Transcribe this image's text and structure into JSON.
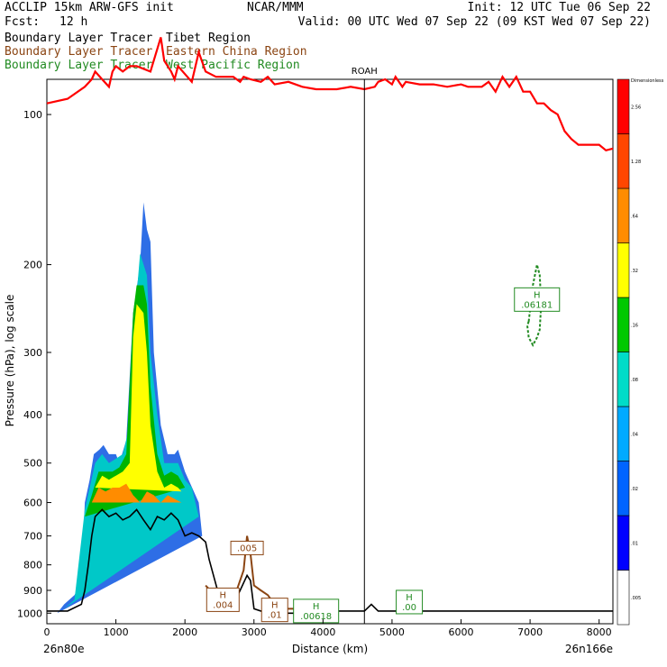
{
  "header": {
    "model": "ACCLIP 15km ARW-GFS init",
    "org": "NCAR/MMM",
    "init": "Init: 12 UTC Tue 06 Sep 22",
    "fcst_label": "Fcst:",
    "fcst_value": "12 h",
    "valid": "Valid: 00 UTC Wed 07 Sep 22 (09 KST Wed 07 Sep 22)"
  },
  "tracer_legend": [
    {
      "name": "Boundary Layer Tracer",
      "region": "Tibet Region",
      "color": "#000000"
    },
    {
      "name": "Boundary Layer Tracer",
      "region": "Eastern China Region",
      "color": "#8B4513"
    },
    {
      "name": "Boundary Layer Tracer",
      "region": "West Pacific Region",
      "color": "#228B22"
    }
  ],
  "chart_data": {
    "type": "area",
    "xlabel": "Distance (km)",
    "ylabel": "Pressure (hPa), log scale",
    "xlim": [
      0,
      8200
    ],
    "ylim": [
      1050,
      85
    ],
    "yscale": "log",
    "x_ticks": [
      "0",
      "1000",
      "2000",
      "3000",
      "4000",
      "5000",
      "6000",
      "7000",
      "8000"
    ],
    "y_ticks": [
      "100",
      "200",
      "300",
      "400",
      "500",
      "600",
      "700",
      "800",
      "900",
      "1000"
    ],
    "left_endpoint": "26n80e",
    "right_endpoint": "26n166e",
    "vertical_marker": {
      "label": "ROAH",
      "x": 4600
    },
    "tropopause_line": {
      "color": "#ff0000",
      "x": [
        0,
        300,
        550,
        650,
        700,
        800,
        900,
        950,
        1000,
        1100,
        1200,
        1300,
        1500,
        1650,
        1700,
        1800,
        1850,
        1900,
        2100,
        2200,
        2300,
        2450,
        2700,
        2800,
        2850,
        2950,
        3100,
        3200,
        3300,
        3500,
        3700,
        3900,
        4200,
        4400,
        4600,
        4750,
        4800,
        4900,
        5000,
        5050,
        5150,
        5200,
        5400,
        5600,
        5800,
        6000,
        6100,
        6300,
        6400,
        6500,
        6600,
        6700,
        6800,
        6900,
        7000,
        7100,
        7200,
        7300,
        7400,
        7500,
        7600,
        7700,
        8000,
        8100,
        8200
      ],
      "y": [
        95,
        93,
        88,
        85,
        82,
        85,
        88,
        82,
        80,
        82,
        80,
        80,
        82,
        70,
        78,
        82,
        85,
        80,
        86,
        75,
        82,
        84,
        84,
        86,
        84,
        85,
        86,
        84,
        87,
        86,
        88,
        89,
        89,
        88,
        89,
        88,
        86,
        85,
        87,
        84,
        88,
        86,
        87,
        87,
        88,
        87,
        88,
        88,
        86,
        90,
        84,
        88,
        84,
        90,
        90,
        95,
        95,
        98,
        100,
        108,
        112,
        115,
        115,
        118,
        117
      ]
    },
    "terrain_surface": {
      "color": "#000000",
      "x": [
        0,
        300,
        500,
        550,
        600,
        650,
        700,
        800,
        900,
        1000,
        1100,
        1200,
        1300,
        1400,
        1500,
        1550,
        1600,
        1700,
        1800,
        1900,
        2000,
        2100,
        2200,
        2300,
        2350,
        2500,
        2700,
        2800,
        2900,
        2950,
        3000,
        3100,
        3300,
        3500,
        3700,
        3900,
        4200,
        4400,
        4600,
        4700,
        4800,
        5000,
        6000,
        7000,
        8000,
        8200
      ],
      "y": [
        990,
        990,
        960,
        900,
        800,
        700,
        640,
        620,
        640,
        630,
        650,
        640,
        620,
        650,
        680,
        660,
        640,
        650,
        630,
        650,
        700,
        690,
        700,
        720,
        780,
        930,
        960,
        900,
        840,
        860,
        980,
        990,
        990,
        1000,
        1000,
        995,
        990,
        990,
        990,
        960,
        990,
        990,
        990,
        990,
        990,
        990
      ]
    },
    "brown_contour": {
      "color": "#8B4513",
      "x": [
        2300,
        2500,
        2650,
        2750,
        2800,
        2850,
        2900,
        2950,
        3000,
        3100,
        3200,
        3300,
        3400,
        3600,
        3700,
        3800,
        3900,
        4000,
        4100
      ],
      "y": [
        880,
        940,
        930,
        900,
        860,
        820,
        700,
        760,
        880,
        900,
        920,
        960,
        980,
        980,
        960,
        960,
        970,
        980,
        990
      ]
    },
    "green_contour": {
      "color": "#228B22",
      "x": [
        6980,
        7040,
        7100,
        7140,
        7160,
        7140,
        7100,
        7040,
        6980,
        6960,
        6980
      ],
      "y": [
        260,
        220,
        200,
        210,
        240,
        270,
        280,
        290,
        280,
        265,
        260
      ]
    },
    "shaded_fields": [
      {
        "fill": "#2e6ee6",
        "x": [
          150,
          250,
          400,
          500,
          550,
          620,
          680,
          760,
          820,
          900,
          1000,
          1050,
          1150,
          1250,
          1350,
          1400,
          1450,
          1500,
          1550,
          1650,
          1750,
          1850,
          1900,
          2000,
          2200,
          2250
        ],
        "y": [
          1000,
          960,
          920,
          870,
          600,
          540,
          480,
          470,
          460,
          480,
          480,
          500,
          450,
          250,
          200,
          150,
          170,
          180,
          300,
          420,
          480,
          480,
          470,
          520,
          600,
          700
        ]
      },
      {
        "fill": "#00c8c8",
        "x": [
          250,
          400,
          550,
          620,
          700,
          800,
          900,
          1000,
          1100,
          1200,
          1300,
          1350,
          1450,
          1500,
          1600,
          1700,
          1800,
          1900,
          2000,
          2100,
          2200
        ],
        "y": [
          980,
          940,
          620,
          560,
          500,
          480,
          500,
          490,
          480,
          420,
          230,
          190,
          210,
          300,
          400,
          500,
          500,
          500,
          540,
          560,
          640
        ]
      },
      {
        "fill": "#00b400",
        "x": [
          550,
          650,
          750,
          850,
          950,
          1050,
          1150,
          1250,
          1300,
          1400,
          1450,
          1500,
          1600,
          1700,
          1800,
          1900,
          2000
        ],
        "y": [
          640,
          580,
          520,
          520,
          520,
          510,
          480,
          250,
          220,
          220,
          240,
          350,
          480,
          530,
          520,
          530,
          560
        ]
      },
      {
        "fill": "#ffff00",
        "x": [
          700,
          800,
          900,
          1000,
          1100,
          1200,
          1250,
          1300,
          1400,
          1450,
          1500,
          1600,
          1700,
          1800,
          1900,
          1950
        ],
        "y": [
          560,
          530,
          540,
          530,
          520,
          500,
          280,
          240,
          250,
          300,
          420,
          520,
          560,
          550,
          560,
          570
        ]
      },
      {
        "fill": "#ff8c00",
        "x": [
          650,
          750,
          850,
          950,
          1050,
          1150,
          1250,
          1350,
          1450,
          1550,
          1650,
          1750,
          1850,
          1950
        ],
        "y": [
          600,
          560,
          570,
          560,
          560,
          550,
          580,
          600,
          570,
          580,
          600,
          580,
          590,
          600
        ]
      }
    ],
    "annotations": [
      {
        "label": "H",
        "value": ".004",
        "x": 2550,
        "y": 940,
        "color": "#8B4513"
      },
      {
        "label": ".005",
        "value": "",
        "x": 2900,
        "y": 740,
        "color": "#8B4513"
      },
      {
        "label": "H",
        "value": ".01",
        "x": 3300,
        "y": 985,
        "color": "#8B4513"
      },
      {
        "label": "H",
        "value": ".00618",
        "x": 3900,
        "y": 990,
        "color": "#228B22"
      },
      {
        "label": "H",
        "value": ".00",
        "x": 5250,
        "y": 950,
        "color": "#228B22"
      },
      {
        "label": "H",
        "value": ".06181",
        "x": 7100,
        "y": 235,
        "color": "#228B22"
      }
    ],
    "colorbar": {
      "title": "Dimensionless",
      "colors": [
        "#ffffff",
        "#0000ff",
        "#0064ff",
        "#00aaff",
        "#00dcc8",
        "#00c800",
        "#ffff00",
        "#ff8c00",
        "#ff4600",
        "#ff0000"
      ],
      "labels": [
        ".005",
        ".01",
        ".02",
        ".04",
        ".08",
        ".16",
        ".32",
        ".64",
        "1.28",
        "2.56"
      ]
    }
  }
}
